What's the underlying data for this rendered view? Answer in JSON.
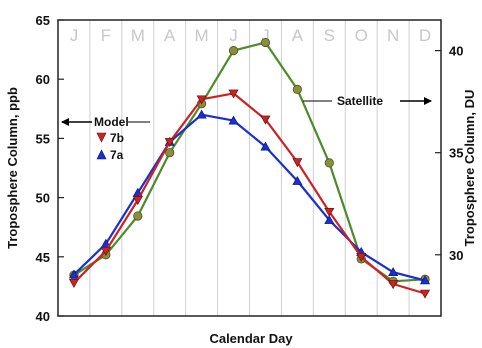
{
  "chart_data": {
    "type": "line",
    "xlabel": "Calendar Day",
    "ylabel": "Troposphere Column, ppb",
    "ylabel_right": "Troposphere Column, DU",
    "ylim": [
      40,
      65
    ],
    "yticks": [
      "40",
      "45",
      "50",
      "55",
      "60",
      "65"
    ],
    "ylim_right": [
      27,
      41.5
    ],
    "yticks_right": [
      "30",
      "35",
      "40"
    ],
    "categories": [
      "J",
      "F",
      "M",
      "A",
      "M",
      "J",
      "J",
      "A",
      "S",
      "O",
      "N",
      "D"
    ],
    "grid": "vertical",
    "annotations": {
      "model": "Model",
      "satellite": "Satellite"
    },
    "series": [
      {
        "name": "7b",
        "axis": "left",
        "color": "#cc2222",
        "marker": "triangle-down",
        "values": [
          42.8,
          45.5,
          49.8,
          54.7,
          58.3,
          58.8,
          56.6,
          53.0,
          48.8,
          45.0,
          42.7,
          41.9
        ]
      },
      {
        "name": "7a",
        "axis": "left",
        "color": "#1a2fd0",
        "marker": "triangle-up",
        "values": [
          43.5,
          46.1,
          50.4,
          54.7,
          57.0,
          56.5,
          54.3,
          51.4,
          48.1,
          45.4,
          43.7,
          43.0
        ]
      },
      {
        "name": "",
        "axis": "right",
        "color": "#4c8c2c",
        "marker": "circle",
        "values": [
          29.0,
          30.0,
          31.9,
          35.0,
          37.4,
          40.0,
          40.4,
          38.1,
          34.5,
          29.8,
          28.7,
          28.8
        ]
      }
    ]
  }
}
